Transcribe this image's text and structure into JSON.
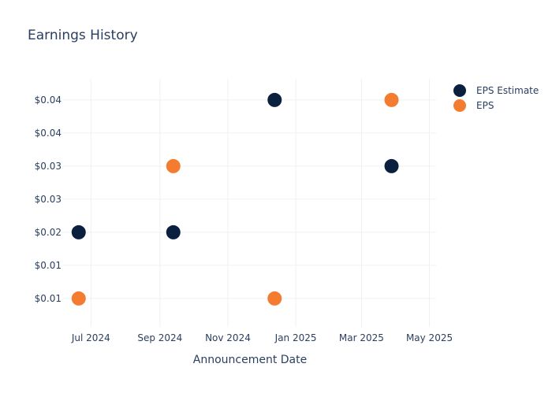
{
  "chart_data": {
    "type": "scatter",
    "title": "Earnings History",
    "xlabel": "Announcement Date",
    "ylabel": "",
    "x_ticks": [
      {
        "date": "2024-07-01",
        "label": "Jul 2024"
      },
      {
        "date": "2024-09-01",
        "label": "Sep 2024"
      },
      {
        "date": "2024-11-01",
        "label": "Nov 2024"
      },
      {
        "date": "2025-01-01",
        "label": "Jan 2025"
      },
      {
        "date": "2025-03-01",
        "label": "Mar 2025"
      },
      {
        "date": "2025-05-01",
        "label": "May 2025"
      }
    ],
    "xlim": [
      "2024-06-06",
      "2025-05-07"
    ],
    "y_ticks": [
      {
        "value": 0.01,
        "label": "$0.01"
      },
      {
        "value": 0.015,
        "label": "$0.01"
      },
      {
        "value": 0.02,
        "label": "$0.02"
      },
      {
        "value": 0.025,
        "label": "$0.03"
      },
      {
        "value": 0.03,
        "label": "$0.03"
      },
      {
        "value": 0.035,
        "label": "$0.04"
      },
      {
        "value": 0.04,
        "label": "$0.04"
      }
    ],
    "ylim": [
      0.0057,
      0.0432
    ],
    "grid": true,
    "legend_position": "top-right",
    "series": [
      {
        "name": "EPS Estimate",
        "color": "#0b1f3f",
        "points": [
          {
            "x": "2024-06-20",
            "y": 0.02
          },
          {
            "x": "2024-09-13",
            "y": 0.02
          },
          {
            "x": "2024-12-13",
            "y": 0.04
          },
          {
            "x": "2025-03-28",
            "y": 0.03
          }
        ]
      },
      {
        "name": "EPS",
        "color": "#f47c30",
        "points": [
          {
            "x": "2024-06-20",
            "y": 0.01
          },
          {
            "x": "2024-09-13",
            "y": 0.03
          },
          {
            "x": "2024-12-13",
            "y": 0.01
          },
          {
            "x": "2025-03-28",
            "y": 0.04
          }
        ]
      }
    ]
  }
}
